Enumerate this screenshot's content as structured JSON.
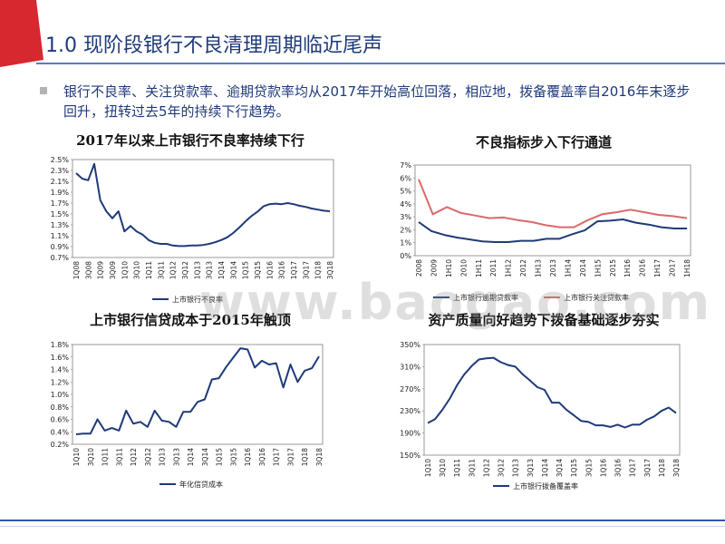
{
  "header": {
    "title": "1.0 现阶段银行不良清理周期临近尾声",
    "accent_color": "#d7282f",
    "title_color": "#1f3a7a"
  },
  "summary": {
    "text": "银行不良率、关注贷款率、逾期贷款率均从2017年开始高位回落，相应地，拨备覆盖率自2016年末逐步回升，扭转过去5年的持续下行趋势。"
  },
  "watermark": {
    "text": "www.baogao.com"
  },
  "chart_data": [
    {
      "id": "npl",
      "type": "line",
      "title": "2017年以来上市银行不良率持续下行",
      "y_ticks": [
        "2.5%",
        "2.3%",
        "2.1%",
        "1.9%",
        "1.7%",
        "1.5%",
        "1.3%",
        "1.1%",
        "0.9%",
        "0.7%"
      ],
      "ylim": [
        0.7,
        2.5
      ],
      "x_ticks": [
        "1Q08",
        "3Q08",
        "1Q09",
        "3Q09",
        "1Q10",
        "3Q10",
        "1Q11",
        "3Q11",
        "1Q12",
        "3Q12",
        "1Q13",
        "3Q13",
        "1Q14",
        "3Q14",
        "1Q15",
        "3Q15",
        "1Q16",
        "3Q16",
        "1Q17",
        "3Q17",
        "1Q18",
        "3Q18"
      ],
      "series": [
        {
          "name": "上市银行不良率",
          "color": "#1f3a7a",
          "values": [
            2.25,
            2.15,
            2.12,
            2.42,
            1.75,
            1.55,
            1.42,
            1.55,
            1.18,
            1.28,
            1.18,
            1.12,
            1.02,
            0.97,
            0.95,
            0.95,
            0.92,
            0.91,
            0.91,
            0.92,
            0.92,
            0.93,
            0.95,
            0.98,
            1.02,
            1.07,
            1.15,
            1.25,
            1.36,
            1.46,
            1.54,
            1.64,
            1.68,
            1.69,
            1.68,
            1.7,
            1.68,
            1.65,
            1.63,
            1.6,
            1.58,
            1.56,
            1.55
          ]
        }
      ]
    },
    {
      "id": "indicators",
      "type": "line",
      "title": "不良指标步入下行通道",
      "y_ticks": [
        "7%",
        "6%",
        "5%",
        "4%",
        "3%",
        "2%",
        "1%",
        "0%"
      ],
      "ylim": [
        0,
        7
      ],
      "x_ticks": [
        "2008",
        "2009",
        "1H10",
        "2010",
        "1H11",
        "2011",
        "1H12",
        "2012",
        "1H13",
        "2013",
        "1H14",
        "2014",
        "1H15",
        "2015",
        "1H16",
        "2016",
        "1H17",
        "2017",
        "1H18"
      ],
      "series": [
        {
          "name": "上市银行逾期贷款率",
          "color": "#1f3a7a",
          "values": [
            2.6,
            1.9,
            1.6,
            1.4,
            1.25,
            1.1,
            1.05,
            1.05,
            1.15,
            1.15,
            1.3,
            1.3,
            1.65,
            1.95,
            2.65,
            2.7,
            2.8,
            2.55,
            2.4,
            2.2,
            2.1,
            2.1
          ]
        },
        {
          "name": "上市银行关注贷款率",
          "color": "#d9696b",
          "values": [
            5.9,
            3.2,
            3.75,
            3.3,
            3.1,
            2.9,
            2.95,
            2.75,
            2.6,
            2.35,
            2.2,
            2.2,
            2.75,
            3.2,
            3.35,
            3.55,
            3.35,
            3.15,
            3.05,
            2.9
          ]
        }
      ]
    },
    {
      "id": "credit_cost",
      "type": "line",
      "title": "上市银行信贷成本于2015年触顶",
      "y_ticks": [
        "1.8%",
        "1.6%",
        "1.4%",
        "1.2%",
        "1.0%",
        "0.8%",
        "0.6%",
        "0.4%",
        "0.2%"
      ],
      "ylim": [
        0.2,
        1.8
      ],
      "x_ticks": [
        "1Q10",
        "3Q10",
        "1Q11",
        "3Q11",
        "1Q12",
        "3Q12",
        "1Q13",
        "3Q13",
        "1Q14",
        "3Q14",
        "1Q15",
        "3Q15",
        "1Q16",
        "3Q16",
        "1Q17",
        "3Q17",
        "1Q18",
        "3Q18"
      ],
      "series": [
        {
          "name": "年化信贷成本",
          "color": "#1f3a7a",
          "values": [
            0.36,
            0.37,
            0.37,
            0.6,
            0.42,
            0.46,
            0.42,
            0.74,
            0.53,
            0.56,
            0.48,
            0.74,
            0.58,
            0.56,
            0.48,
            0.72,
            0.72,
            0.88,
            0.92,
            1.24,
            1.26,
            1.44,
            1.59,
            1.74,
            1.72,
            1.43,
            1.54,
            1.48,
            1.5,
            1.11,
            1.48,
            1.2,
            1.38,
            1.42,
            1.61
          ]
        }
      ]
    },
    {
      "id": "coverage",
      "type": "line",
      "title": "资产质量向好趋势下拨备基础逐步夯实",
      "y_ticks": [
        "350%",
        "310%",
        "270%",
        "230%",
        "190%",
        "150%"
      ],
      "ylim": [
        150,
        350
      ],
      "x_ticks": [
        "1Q10",
        "3Q10",
        "1Q11",
        "3Q11",
        "1Q12",
        "3Q12",
        "1Q13",
        "3Q13",
        "1Q14",
        "3Q14",
        "1Q15",
        "3Q15",
        "1Q16",
        "3Q16",
        "1Q17",
        "3Q17",
        "1Q18",
        "3Q18"
      ],
      "series": [
        {
          "name": "上市银行拨备覆盖率",
          "color": "#1f3a7a",
          "values": [
            208,
            215,
            232,
            252,
            276,
            296,
            311,
            323,
            325,
            326,
            318,
            313,
            310,
            296,
            285,
            273,
            268,
            245,
            245,
            232,
            222,
            212,
            210,
            204,
            204,
            201,
            205,
            200,
            205,
            205,
            214,
            220,
            230,
            236,
            226
          ]
        }
      ]
    }
  ]
}
